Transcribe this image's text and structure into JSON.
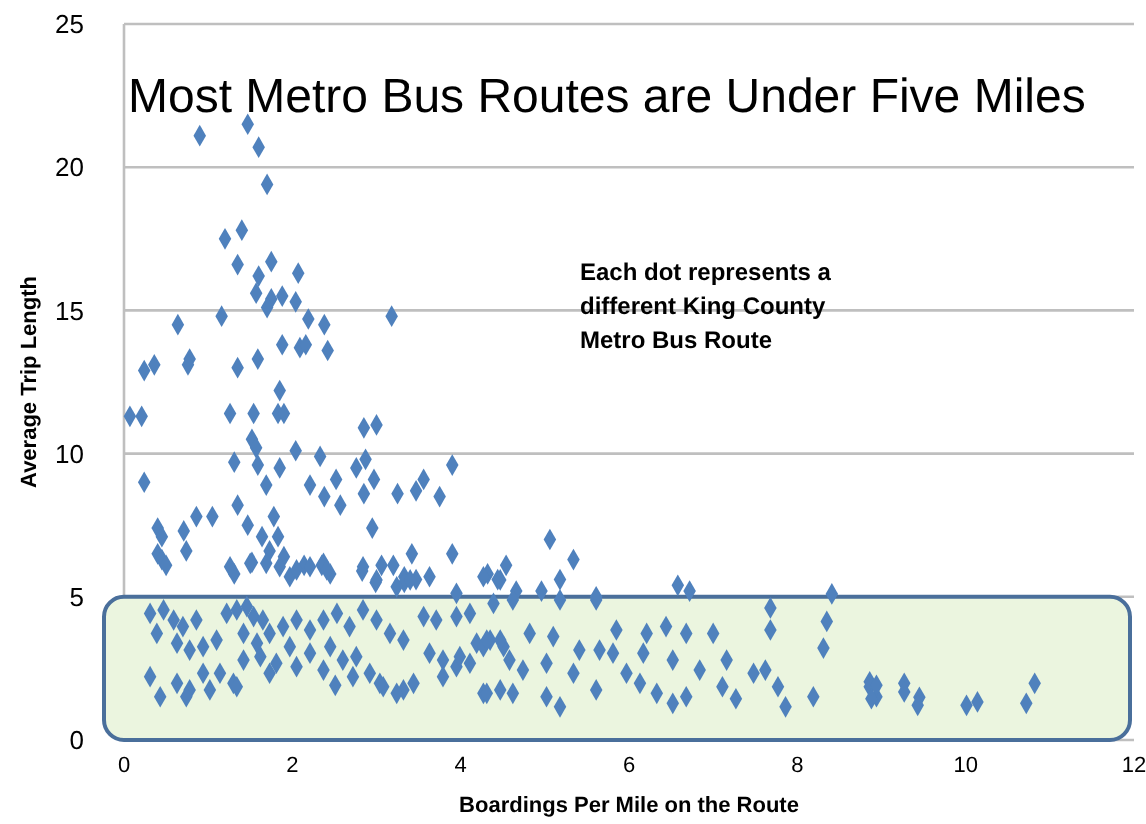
{
  "chart_data": {
    "type": "scatter",
    "title": "Most Metro Bus Routes are Under Five Miles",
    "xlabel": "Boardings Per Mile on the Route",
    "ylabel": "Average Trip Length",
    "annotations": [
      "Each dot represents a different King County Metro Bus Route"
    ],
    "xlim": [
      0,
      12
    ],
    "xticks": [
      0,
      2,
      4,
      6,
      8,
      10,
      12
    ],
    "ylim": [
      0,
      25
    ],
    "yticks": [
      0,
      5,
      10,
      15,
      20,
      25
    ],
    "grid": "y",
    "marker": "diamond",
    "bands": [
      {
        "axis": "y",
        "from": 0,
        "to": 5,
        "color": "#ebf5df"
      }
    ],
    "series": [
      {
        "color": "#4f81bd",
        "x": [
          0.9,
          1.47,
          1.6,
          1.7,
          1.2,
          1.4,
          1.35,
          1.75,
          1.6,
          2.07,
          1.57,
          1.75,
          1.88,
          1.7,
          2.04,
          1.16,
          2.19,
          2.38,
          0.64,
          3.18,
          1.88,
          2.09,
          2.16,
          2.42,
          0.78,
          0.76,
          0.36,
          0.24,
          1.35,
          1.59,
          1.85,
          0.07,
          0.21,
          1.26,
          1.54,
          1.83,
          1.9,
          1.52,
          2.85,
          3.0,
          1.57,
          2.04,
          2.33,
          1.31,
          1.59,
          1.85,
          2.76,
          2.87,
          3.9,
          0.24,
          1.69,
          2.21,
          2.52,
          2.97,
          2.38,
          2.57,
          2.85,
          3.25,
          3.47,
          3.56,
          3.75,
          1.35,
          0.86,
          1.05,
          1.47,
          1.78,
          2.95,
          0.4,
          0.45,
          0.71,
          1.64,
          1.83,
          0.74,
          0.4,
          0.45,
          1.73,
          1.9,
          3.42,
          3.9,
          0.5,
          1.52,
          2.14,
          2.35,
          2.83,
          3.06,
          3.2,
          3.33,
          1.31,
          1.97,
          2.45,
          2.99,
          3.33,
          3.47,
          4.32,
          4.44,
          5.06,
          5.34,
          4.54,
          5.18,
          6.58,
          6.72,
          8.41,
          4.96,
          4.66,
          5.61,
          0.31,
          0.47,
          0.59,
          0.39,
          0.7,
          0.86,
          0.63,
          0.78,
          0.94,
          1.1,
          1.22,
          1.34,
          1.46,
          1.54,
          1.65,
          1.42,
          1.58,
          1.73,
          1.89,
          2.05,
          2.21,
          2.37,
          2.53,
          2.68,
          2.84,
          3.0,
          3.16,
          3.32,
          3.56,
          3.71,
          3.95,
          4.11,
          4.19,
          4.35,
          4.51,
          0.31,
          0.43,
          0.63,
          0.78,
          0.94,
          1.14,
          1.3,
          1.42,
          1.62,
          1.81,
          1.97,
          2.21,
          2.45,
          2.6,
          2.76,
          2.92,
          3.08,
          3.32,
          3.44,
          3.63,
          3.79,
          3.95,
          4.11,
          4.27,
          4.47,
          0.74,
          1.02,
          1.34,
          1.73,
          2.05,
          2.37,
          2.51,
          2.72,
          3.04,
          3.24,
          3.79,
          3.99,
          4.27,
          1.26,
          1.5,
          1.69,
          1.85,
          2.05,
          2.21,
          2.37,
          2.41,
          2.84,
          3.0,
          3.24,
          3.4,
          3.63,
          3.95,
          4.27,
          4.47,
          4.39,
          4.62,
          5.18,
          5.61,
          4.31,
          4.47,
          4.82,
          5.1,
          5.41,
          5.65,
          5.85,
          6.21,
          6.44,
          6.68,
          7.0,
          7.16,
          7.68,
          7.68,
          8.35,
          8.31,
          4.58,
          5.02,
          5.81,
          6.17,
          6.52,
          6.84,
          7.48,
          7.62,
          4.31,
          4.62,
          5.02,
          5.61,
          6.33,
          6.52,
          6.68,
          7.11,
          7.27,
          7.77,
          7.86,
          8.19,
          5.18,
          8.86,
          8.94,
          4.74,
          5.34,
          5.97,
          6.13,
          8.86,
          8.94,
          8.88,
          9.27,
          9.27,
          9.45,
          9.43,
          10.01,
          10.14,
          10.72,
          10.82
        ],
        "values": [
          21.1,
          21.5,
          20.7,
          19.4,
          17.5,
          17.8,
          16.6,
          16.7,
          16.2,
          16.3,
          15.6,
          15.4,
          15.5,
          15.1,
          15.3,
          14.8,
          14.7,
          14.5,
          14.5,
          14.8,
          13.8,
          13.7,
          13.8,
          13.6,
          13.3,
          13.1,
          13.1,
          12.9,
          13.0,
          13.3,
          12.2,
          11.3,
          11.3,
          11.4,
          11.4,
          11.4,
          11.4,
          10.5,
          10.9,
          11.0,
          10.2,
          10.1,
          9.9,
          9.7,
          9.6,
          9.5,
          9.5,
          9.8,
          9.6,
          9.0,
          8.9,
          8.9,
          9.1,
          9.1,
          8.5,
          8.2,
          8.6,
          8.6,
          8.7,
          9.1,
          8.5,
          8.2,
          7.8,
          7.8,
          7.5,
          7.8,
          7.4,
          7.4,
          7.1,
          7.3,
          7.1,
          7.1,
          6.6,
          6.5,
          6.3,
          6.6,
          6.4,
          6.5,
          6.5,
          6.1,
          6.2,
          6.1,
          6.1,
          5.9,
          6.1,
          6.1,
          5.7,
          5.8,
          5.7,
          5.8,
          5.5,
          5.5,
          5.6,
          5.8,
          5.6,
          7.0,
          6.3,
          6.1,
          5.6,
          5.4,
          5.2,
          5.1,
          5.2,
          5.2,
          5.0,
          4.42,
          4.54,
          4.19,
          3.72,
          3.96,
          4.19,
          3.38,
          3.14,
          3.26,
          3.49,
          4.42,
          4.54,
          4.66,
          4.31,
          4.19,
          3.72,
          3.38,
          3.72,
          3.96,
          4.19,
          3.84,
          4.19,
          4.42,
          3.96,
          4.54,
          4.19,
          3.72,
          3.49,
          4.31,
          4.19,
          4.31,
          4.42,
          3.38,
          3.49,
          3.26,
          2.21,
          1.51,
          1.98,
          1.75,
          2.33,
          2.33,
          1.98,
          2.79,
          2.91,
          2.68,
          3.26,
          3.03,
          3.26,
          2.79,
          2.91,
          2.33,
          1.86,
          1.75,
          1.98,
          3.03,
          2.79,
          2.56,
          2.68,
          1.63,
          1.75,
          1.51,
          1.75,
          1.86,
          2.33,
          2.56,
          2.44,
          1.91,
          2.21,
          1.98,
          1.63,
          2.21,
          2.91,
          3.26,
          6.05,
          6.17,
          6.17,
          6.05,
          5.94,
          6.05,
          6.17,
          5.94,
          6.05,
          5.59,
          5.35,
          5.59,
          5.7,
          5.12,
          5.7,
          5.59,
          4.77,
          4.89,
          4.89,
          4.89,
          3.49,
          3.49,
          3.72,
          3.61,
          3.14,
          3.14,
          3.84,
          3.72,
          3.96,
          3.72,
          3.72,
          2.79,
          4.61,
          3.84,
          4.14,
          3.21,
          2.79,
          2.68,
          3.03,
          3.03,
          2.79,
          2.44,
          2.33,
          2.44,
          1.63,
          1.63,
          1.51,
          1.75,
          1.63,
          1.28,
          1.51,
          1.86,
          1.44,
          1.86,
          1.16,
          1.51,
          1.16,
          1.86,
          1.51,
          2.44,
          2.33,
          2.33,
          1.98,
          2.03,
          1.91,
          1.44,
          1.98,
          1.68,
          1.49,
          1.21,
          1.21,
          1.33,
          1.28,
          1.98
        ]
      }
    ]
  }
}
